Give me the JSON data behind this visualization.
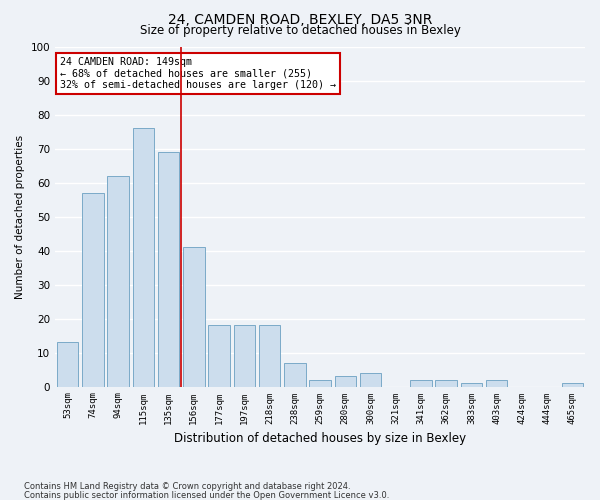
{
  "title1": "24, CAMDEN ROAD, BEXLEY, DA5 3NR",
  "title2": "Size of property relative to detached houses in Bexley",
  "xlabel": "Distribution of detached houses by size in Bexley",
  "ylabel": "Number of detached properties",
  "categories": [
    "53sqm",
    "74sqm",
    "94sqm",
    "115sqm",
    "135sqm",
    "156sqm",
    "177sqm",
    "197sqm",
    "218sqm",
    "238sqm",
    "259sqm",
    "280sqm",
    "300sqm",
    "321sqm",
    "341sqm",
    "362sqm",
    "383sqm",
    "403sqm",
    "424sqm",
    "444sqm",
    "465sqm"
  ],
  "values": [
    13,
    57,
    62,
    76,
    69,
    41,
    18,
    18,
    18,
    7,
    2,
    3,
    4,
    0,
    2,
    2,
    1,
    2,
    0,
    0,
    1
  ],
  "bar_color": "#ccdded",
  "bar_edge_color": "#7aaac8",
  "vline_x": 4.5,
  "vline_color": "#cc0000",
  "annotation_text": "24 CAMDEN ROAD: 149sqm\n← 68% of detached houses are smaller (255)\n32% of semi-detached houses are larger (120) →",
  "annotation_box_color": "#ffffff",
  "annotation_box_edge": "#cc0000",
  "ylim": [
    0,
    100
  ],
  "yticks": [
    0,
    10,
    20,
    30,
    40,
    50,
    60,
    70,
    80,
    90,
    100
  ],
  "footer1": "Contains HM Land Registry data © Crown copyright and database right 2024.",
  "footer2": "Contains public sector information licensed under the Open Government Licence v3.0.",
  "bg_color": "#eef2f7",
  "plot_bg_color": "#eef2f7",
  "title1_fontsize": 10,
  "title2_fontsize": 8.5,
  "ylabel_fontsize": 7.5,
  "xlabel_fontsize": 8.5
}
